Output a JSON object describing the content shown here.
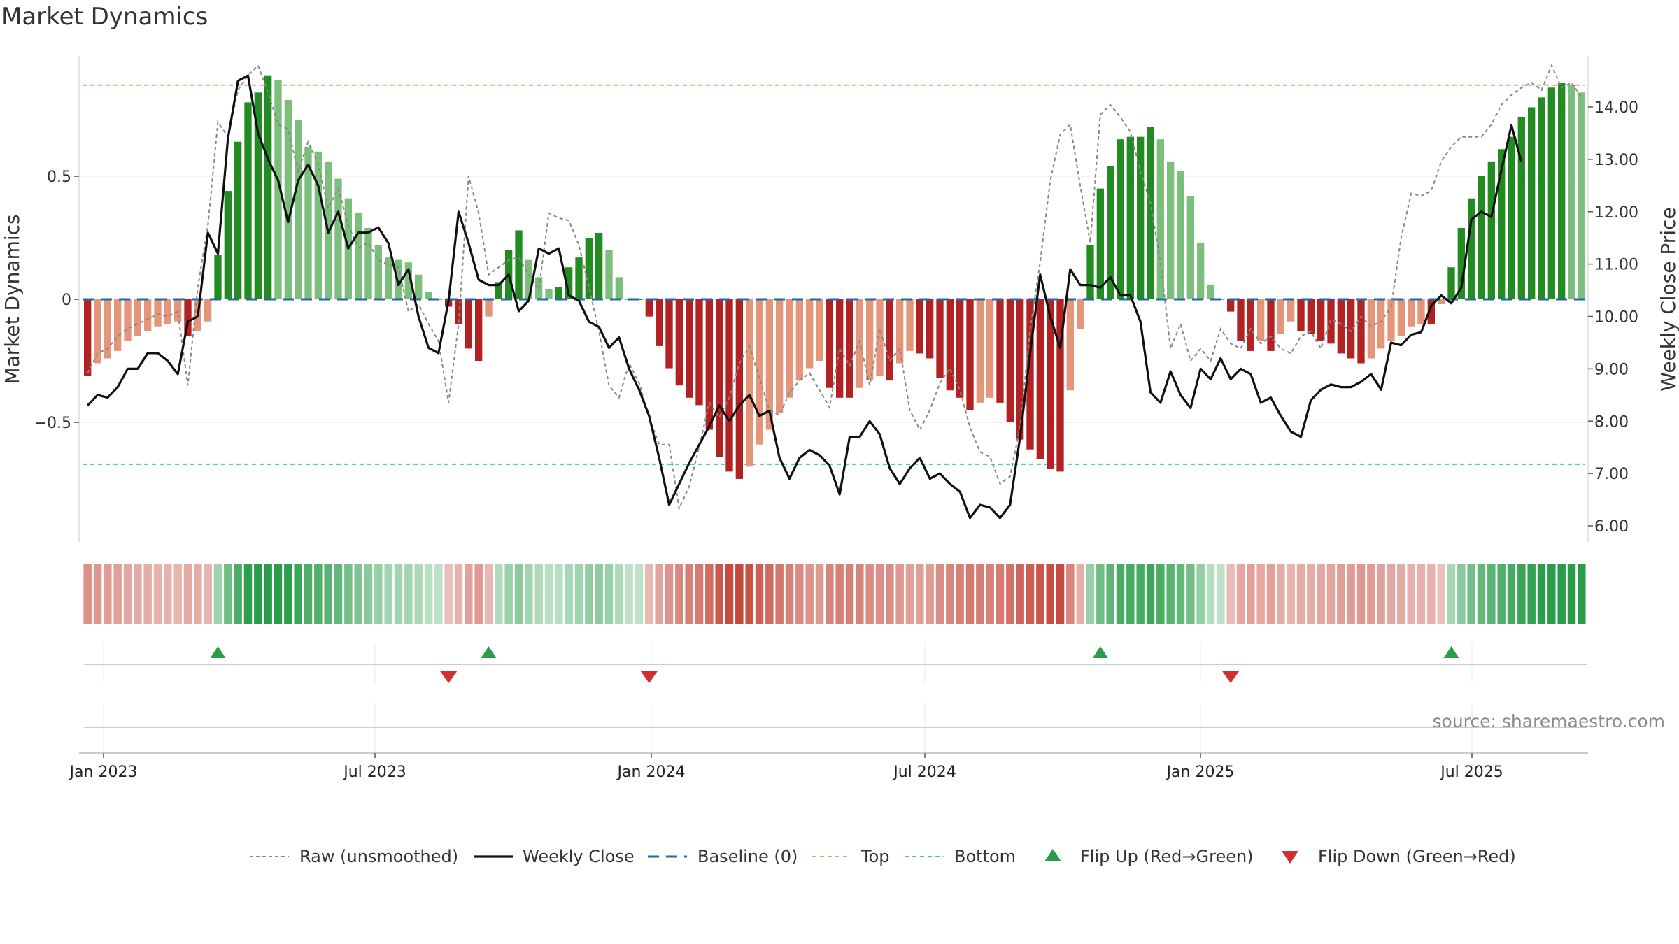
{
  "title": "Market Dynamics",
  "source": "source: sharemaestro.com",
  "colors": {
    "dark_green": "#228b22",
    "light_green": "#7cbf7c",
    "dark_red": "#b22222",
    "light_red": "#e5967a",
    "top_line": "#f2a46a",
    "bottom_line": "#3cc0d0",
    "baseline": "#1f6aa5",
    "raw": "#888888",
    "close": "#111111",
    "flip_up": "#2a9d4a",
    "flip_down": "#d03030"
  },
  "chart_data": {
    "type": "bar",
    "left_axis": {
      "label": "Market Dynamics",
      "ticks": [
        "0.5",
        "0",
        "−0.5"
      ],
      "ylim": [
        -0.97,
        0.97
      ]
    },
    "right_axis": {
      "label": "Weekly Close Price",
      "ticks": [
        "14.00",
        "13.00",
        "12.00",
        "11.00",
        "10.00",
        "9.00",
        "8.00",
        "7.00",
        "6.00"
      ],
      "ylim": [
        5.7,
        15.0
      ]
    },
    "x_labels": [
      "Jan 2023",
      "Jul 2023",
      "Jan 2024",
      "Jul 2024",
      "Jan 2025",
      "Jul 2025"
    ],
    "top_level": 0.87,
    "bottom_level": -0.67,
    "baseline": 0,
    "series": [
      {
        "name": "Market Dynamics (smoothed)",
        "values": [
          -0.31,
          -0.26,
          -0.24,
          -0.21,
          -0.17,
          -0.15,
          -0.13,
          -0.11,
          -0.1,
          -0.09,
          -0.15,
          -0.13,
          -0.09,
          0.18,
          0.44,
          0.64,
          0.8,
          0.84,
          0.91,
          0.89,
          0.81,
          0.73,
          0.62,
          0.6,
          0.56,
          0.49,
          0.41,
          0.35,
          0.29,
          0.22,
          0.17,
          0.16,
          0.15,
          0.1,
          0.03,
          0.0,
          -0.03,
          -0.1,
          -0.2,
          -0.25,
          -0.07,
          0.07,
          0.2,
          0.28,
          0.16,
          0.09,
          0.04,
          0.05,
          0.13,
          0.17,
          0.25,
          0.27,
          0.2,
          0.09,
          0.0,
          0.0,
          -0.07,
          -0.19,
          -0.28,
          -0.35,
          -0.4,
          -0.43,
          -0.53,
          -0.64,
          -0.7,
          -0.73,
          -0.68,
          -0.59,
          -0.53,
          -0.46,
          -0.4,
          -0.33,
          -0.28,
          -0.25,
          -0.36,
          -0.4,
          -0.4,
          -0.36,
          -0.33,
          -0.31,
          -0.33,
          -0.26,
          -0.21,
          -0.22,
          -0.24,
          -0.32,
          -0.37,
          -0.4,
          -0.45,
          -0.42,
          -0.4,
          -0.42,
          -0.5,
          -0.57,
          -0.61,
          -0.65,
          -0.69,
          -0.7,
          -0.37,
          -0.12,
          0.22,
          0.45,
          0.54,
          0.65,
          0.66,
          0.66,
          0.7,
          0.65,
          0.56,
          0.52,
          0.42,
          0.23,
          0.06,
          0.0,
          -0.05,
          -0.17,
          -0.21,
          -0.17,
          -0.21,
          -0.14,
          -0.09,
          -0.13,
          -0.14,
          -0.17,
          -0.18,
          -0.22,
          -0.24,
          -0.26,
          -0.24,
          -0.2,
          -0.17,
          -0.15,
          -0.11,
          -0.1,
          -0.1,
          -0.02,
          0.13,
          0.29,
          0.41,
          0.5,
          0.56,
          0.61,
          0.66,
          0.74,
          0.78,
          0.82,
          0.86,
          0.88,
          0.87,
          0.84
        ]
      },
      {
        "name": "Raw (unsmoothed)",
        "values": [
          -0.3,
          -0.22,
          -0.2,
          -0.15,
          -0.12,
          -0.1,
          -0.08,
          -0.06,
          -0.07,
          -0.05,
          -0.35,
          0.05,
          0.3,
          0.72,
          0.66,
          0.85,
          0.91,
          0.95,
          0.84,
          0.71,
          0.69,
          0.52,
          0.64,
          0.55,
          0.37,
          0.45,
          0.3,
          0.21,
          0.23,
          0.16,
          0.14,
          0.13,
          -0.05,
          -0.02,
          -0.1,
          -0.17,
          -0.42,
          -0.1,
          0.5,
          0.35,
          0.1,
          0.13,
          0.16,
          0.17,
          0.1,
          0.04,
          0.35,
          0.33,
          0.32,
          0.22,
          0.05,
          -0.13,
          -0.35,
          -0.4,
          -0.26,
          -0.34,
          -0.48,
          -0.59,
          -0.59,
          -0.85,
          -0.76,
          -0.6,
          -0.42,
          -0.48,
          -0.4,
          -0.26,
          -0.19,
          -0.32,
          -0.45,
          -0.47,
          -0.38,
          -0.33,
          -0.3,
          -0.37,
          -0.44,
          -0.2,
          -0.27,
          -0.17,
          -0.35,
          -0.12,
          -0.25,
          -0.2,
          -0.45,
          -0.53,
          -0.45,
          -0.34,
          -0.28,
          -0.37,
          -0.52,
          -0.62,
          -0.64,
          -0.75,
          -0.72,
          -0.52,
          -0.12,
          0.15,
          0.48,
          0.67,
          0.71,
          0.46,
          0.23,
          0.75,
          0.79,
          0.74,
          0.68,
          0.52,
          0.39,
          0.15,
          -0.2,
          -0.1,
          -0.25,
          -0.2,
          -0.25,
          -0.12,
          -0.18,
          -0.2,
          -0.12,
          -0.18,
          -0.15,
          -0.2,
          -0.22,
          -0.15,
          -0.13,
          -0.2,
          -0.08,
          -0.1,
          -0.13,
          -0.07,
          -0.11,
          -0.09,
          -0.03,
          0.25,
          0.43,
          0.42,
          0.44,
          0.56,
          0.62,
          0.66,
          0.66,
          0.66,
          0.71,
          0.79,
          0.83,
          0.86,
          0.88,
          0.85,
          0.95,
          0.86,
          0.88,
          0.82
        ]
      },
      {
        "name": "Weekly Close",
        "values": [
          8.3,
          8.5,
          8.45,
          8.65,
          9.0,
          9.0,
          9.3,
          9.3,
          9.15,
          8.9,
          9.9,
          10.0,
          11.6,
          11.2,
          13.4,
          14.5,
          14.6,
          13.5,
          13.0,
          12.6,
          11.8,
          12.6,
          12.9,
          12.5,
          11.6,
          12.0,
          11.3,
          11.6,
          11.6,
          11.7,
          11.4,
          10.6,
          10.9,
          10.0,
          9.4,
          9.3,
          10.3,
          12.0,
          11.4,
          10.7,
          10.6,
          10.6,
          10.8,
          10.1,
          10.3,
          11.3,
          11.2,
          11.3,
          10.4,
          10.3,
          9.9,
          9.8,
          9.4,
          9.6,
          9.0,
          8.6,
          8.1,
          7.3,
          6.4,
          6.8,
          7.2,
          7.55,
          7.9,
          8.3,
          8.0,
          8.3,
          8.5,
          8.1,
          8.2,
          7.3,
          6.9,
          7.3,
          7.45,
          7.35,
          7.15,
          6.6,
          7.7,
          7.7,
          8.0,
          7.75,
          7.1,
          6.8,
          7.1,
          7.3,
          6.9,
          7.0,
          6.8,
          6.65,
          6.15,
          6.4,
          6.35,
          6.15,
          6.4,
          7.7,
          9.3,
          10.8,
          10.0,
          9.4,
          10.9,
          10.6,
          10.6,
          10.55,
          10.75,
          10.4,
          10.4,
          9.9,
          8.55,
          8.35,
          8.95,
          8.5,
          8.25,
          9.0,
          8.8,
          9.2,
          8.8,
          9.0,
          8.9,
          8.35,
          8.45,
          8.1,
          7.8,
          7.7,
          8.4,
          8.6,
          8.7,
          8.65,
          8.65,
          8.75,
          8.9,
          8.6,
          9.5,
          9.45,
          9.65,
          9.7,
          10.2,
          10.4,
          10.25,
          10.55,
          11.85,
          12.0,
          11.9,
          12.8,
          13.65,
          12.95
        ]
      }
    ],
    "flips": {
      "up_labels": [
        "Flip Up (Red→Green)"
      ],
      "up_at": [
        13,
        40,
        101,
        136
      ],
      "down_at": [
        36,
        56,
        114
      ]
    },
    "legend": [
      {
        "key": "raw",
        "label": "Raw (unsmoothed)"
      },
      {
        "key": "close",
        "label": "Weekly Close"
      },
      {
        "key": "baseline",
        "label": "Baseline (0)"
      },
      {
        "key": "top",
        "label": "Top"
      },
      {
        "key": "bottom",
        "label": "Bottom"
      },
      {
        "key": "flip_up",
        "label": "Flip Up (Red→Green)"
      },
      {
        "key": "flip_down",
        "label": "Flip Down (Green→Red)"
      }
    ]
  }
}
